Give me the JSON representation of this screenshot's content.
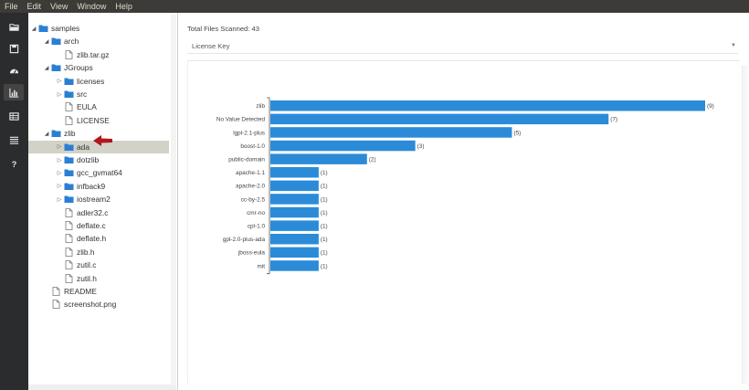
{
  "menubar": {
    "items": [
      "File",
      "Edit",
      "View",
      "Window",
      "Help"
    ]
  },
  "toolbar": {
    "buttons": [
      {
        "icon": "folder-open-icon"
      },
      {
        "icon": "save-icon"
      },
      {
        "icon": "dashboard-icon"
      },
      {
        "icon": "bar-chart-icon"
      },
      {
        "icon": "table-icon"
      },
      {
        "icon": "list-icon"
      },
      {
        "icon": "help-icon"
      }
    ],
    "active_index": 3
  },
  "tree": {
    "rows": [
      {
        "label": "samples",
        "depth": 0,
        "kind": "folder",
        "expanded": true
      },
      {
        "label": "arch",
        "depth": 1,
        "kind": "folder",
        "expanded": true
      },
      {
        "label": "zlib.tar.gz",
        "depth": 2,
        "kind": "file"
      },
      {
        "label": "JGroups",
        "depth": 1,
        "kind": "folder",
        "expanded": true
      },
      {
        "label": "licenses",
        "depth": 2,
        "kind": "folder",
        "expanded": false
      },
      {
        "label": "src",
        "depth": 2,
        "kind": "folder",
        "expanded": false
      },
      {
        "label": "EULA",
        "depth": 2,
        "kind": "file"
      },
      {
        "label": "LICENSE",
        "depth": 2,
        "kind": "file"
      },
      {
        "label": "zlib",
        "depth": 1,
        "kind": "folder",
        "expanded": true
      },
      {
        "label": "ada",
        "depth": 2,
        "kind": "folder",
        "expanded": false,
        "selected": true
      },
      {
        "label": "dotzlib",
        "depth": 2,
        "kind": "folder",
        "expanded": false
      },
      {
        "label": "gcc_gvmat64",
        "depth": 2,
        "kind": "folder",
        "expanded": false
      },
      {
        "label": "infback9",
        "depth": 2,
        "kind": "folder",
        "expanded": false
      },
      {
        "label": "iostream2",
        "depth": 2,
        "kind": "folder",
        "expanded": false
      },
      {
        "label": "adler32.c",
        "depth": 2,
        "kind": "file"
      },
      {
        "label": "deflate.c",
        "depth": 2,
        "kind": "file"
      },
      {
        "label": "deflate.h",
        "depth": 2,
        "kind": "file"
      },
      {
        "label": "zlib.h",
        "depth": 2,
        "kind": "file"
      },
      {
        "label": "zutil.c",
        "depth": 2,
        "kind": "file"
      },
      {
        "label": "zutil.h",
        "depth": 2,
        "kind": "file"
      },
      {
        "label": "README",
        "depth": 1,
        "kind": "file"
      },
      {
        "label": "screenshot.png",
        "depth": 1,
        "kind": "file"
      }
    ]
  },
  "main": {
    "total_files": "Total Files Scanned: 43",
    "license_select": "License Key"
  },
  "colors": {
    "bar": "#2b8bd8",
    "folder": "#2a7fd4",
    "selected_row": "#d2d2c8"
  },
  "chart_data": {
    "type": "bar",
    "orientation": "horizontal",
    "categories": [
      "zlib",
      "No Value Detected",
      "lgpl-2.1-plus",
      "boost-1.0",
      "public-domain",
      "apache-1.1",
      "apache-2.0",
      "cc-by-2.5",
      "cmr-no",
      "cpl-1.0",
      "gpl-2.0-plus-ada",
      "jboss-eula",
      "mit"
    ],
    "values": [
      9,
      7,
      5,
      3,
      2,
      1,
      1,
      1,
      1,
      1,
      1,
      1,
      1
    ],
    "value_labels": [
      "(9)",
      "(7)",
      "(5)",
      "(3)",
      "(2)",
      "(1)",
      "(1)",
      "(1)",
      "(1)",
      "(1)",
      "(1)",
      "(1)",
      "(1)"
    ],
    "xlim": [
      0,
      9
    ],
    "grid": false,
    "title": "",
    "xlabel": "",
    "ylabel": ""
  }
}
